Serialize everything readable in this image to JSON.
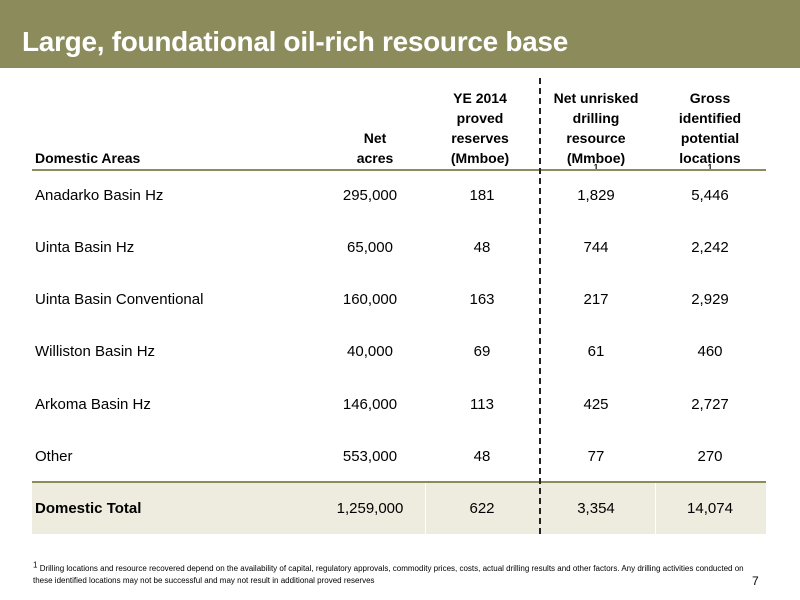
{
  "title": "Large, foundational oil-rich resource base",
  "columns": {
    "area": "Domestic Areas",
    "acres": [
      "Net",
      "acres"
    ],
    "reserves": [
      "YE 2014",
      "proved",
      "reserves",
      "(Mmboe)"
    ],
    "resource": [
      "Net unrisked",
      "drilling",
      "resource",
      "(Mmboe)"
    ],
    "resource_sup": "1",
    "locations": [
      "Gross",
      "identified",
      "potential",
      "locations"
    ],
    "locations_sup": "1"
  },
  "rows": [
    {
      "area": "Anadarko Basin Hz",
      "acres": "295,000",
      "reserves": "181",
      "resource": "1,829",
      "locations": "5,446"
    },
    {
      "area": "Uinta Basin Hz",
      "acres": "65,000",
      "reserves": "48",
      "resource": "744",
      "locations": "2,242"
    },
    {
      "area": "Uinta Basin Conventional",
      "acres": "160,000",
      "reserves": "163",
      "resource": "217",
      "locations": "2,929"
    },
    {
      "area": "Williston Basin Hz",
      "acres": "40,000",
      "reserves": "69",
      "resource": "61",
      "locations": "460"
    },
    {
      "area": "Arkoma Basin Hz",
      "acres": "146,000",
      "reserves": "113",
      "resource": "425",
      "locations": "2,727"
    },
    {
      "area": "Other",
      "acres": "553,000",
      "reserves": "48",
      "resource": "77",
      "locations": "270"
    }
  ],
  "total": {
    "area": "Domestic Total",
    "acres": "1,259,000",
    "reserves": "622",
    "resource": "3,354",
    "locations": "14,074"
  },
  "footnote_marker": "1",
  "footnote": "Drilling locations and resource recovered depend on the availability of capital, regulatory approvals, commodity prices, costs, actual drilling results and other factors. Any drilling activities conducted on these identified locations may not be successful and may not result in additional proved reserves",
  "page_number": "7",
  "colors": {
    "accent": "#8b8b5b",
    "total_band": "#eeecdf"
  }
}
